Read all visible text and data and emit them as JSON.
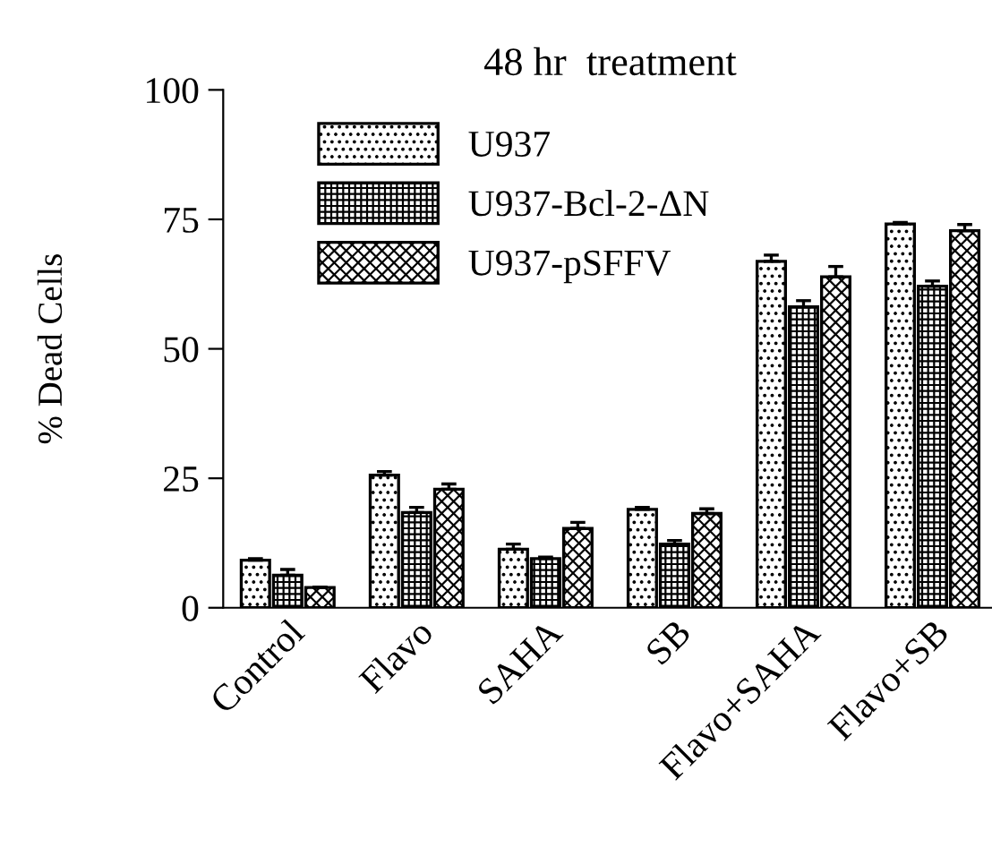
{
  "chart_data": {
    "type": "bar",
    "title": "48 hr  treatment",
    "ylabel": "% Dead Cells",
    "categories": [
      "Control",
      "Flavo",
      "SAHA",
      "SB",
      "Flavo+SAHA",
      "Flavo+SB"
    ],
    "series": [
      {
        "name": "U937",
        "color": "#000000",
        "values": [
          9.2,
          25.6,
          11.3,
          19.0,
          66.9,
          74.1
        ],
        "errors": [
          0.3,
          0.7,
          1.0,
          0.4,
          1.2,
          0.3
        ]
      },
      {
        "name": "U937-Bcl-2-ΔN",
        "color": "#000000",
        "values": [
          6.3,
          18.4,
          9.5,
          12.3,
          58.1,
          62.1
        ],
        "errors": [
          1.1,
          1.0,
          0.3,
          0.7,
          1.2,
          1.0
        ]
      },
      {
        "name": "U937-pSFFV",
        "color": "#000000",
        "values": [
          3.9,
          22.9,
          15.3,
          18.2,
          63.9,
          72.8
        ],
        "errors": [
          0.1,
          1.0,
          1.2,
          0.9,
          2.0,
          1.2
        ]
      }
    ],
    "ylim": [
      0,
      100
    ],
    "yticks": [
      0,
      25,
      50,
      75,
      100
    ],
    "grid": false,
    "legend": "top left"
  }
}
